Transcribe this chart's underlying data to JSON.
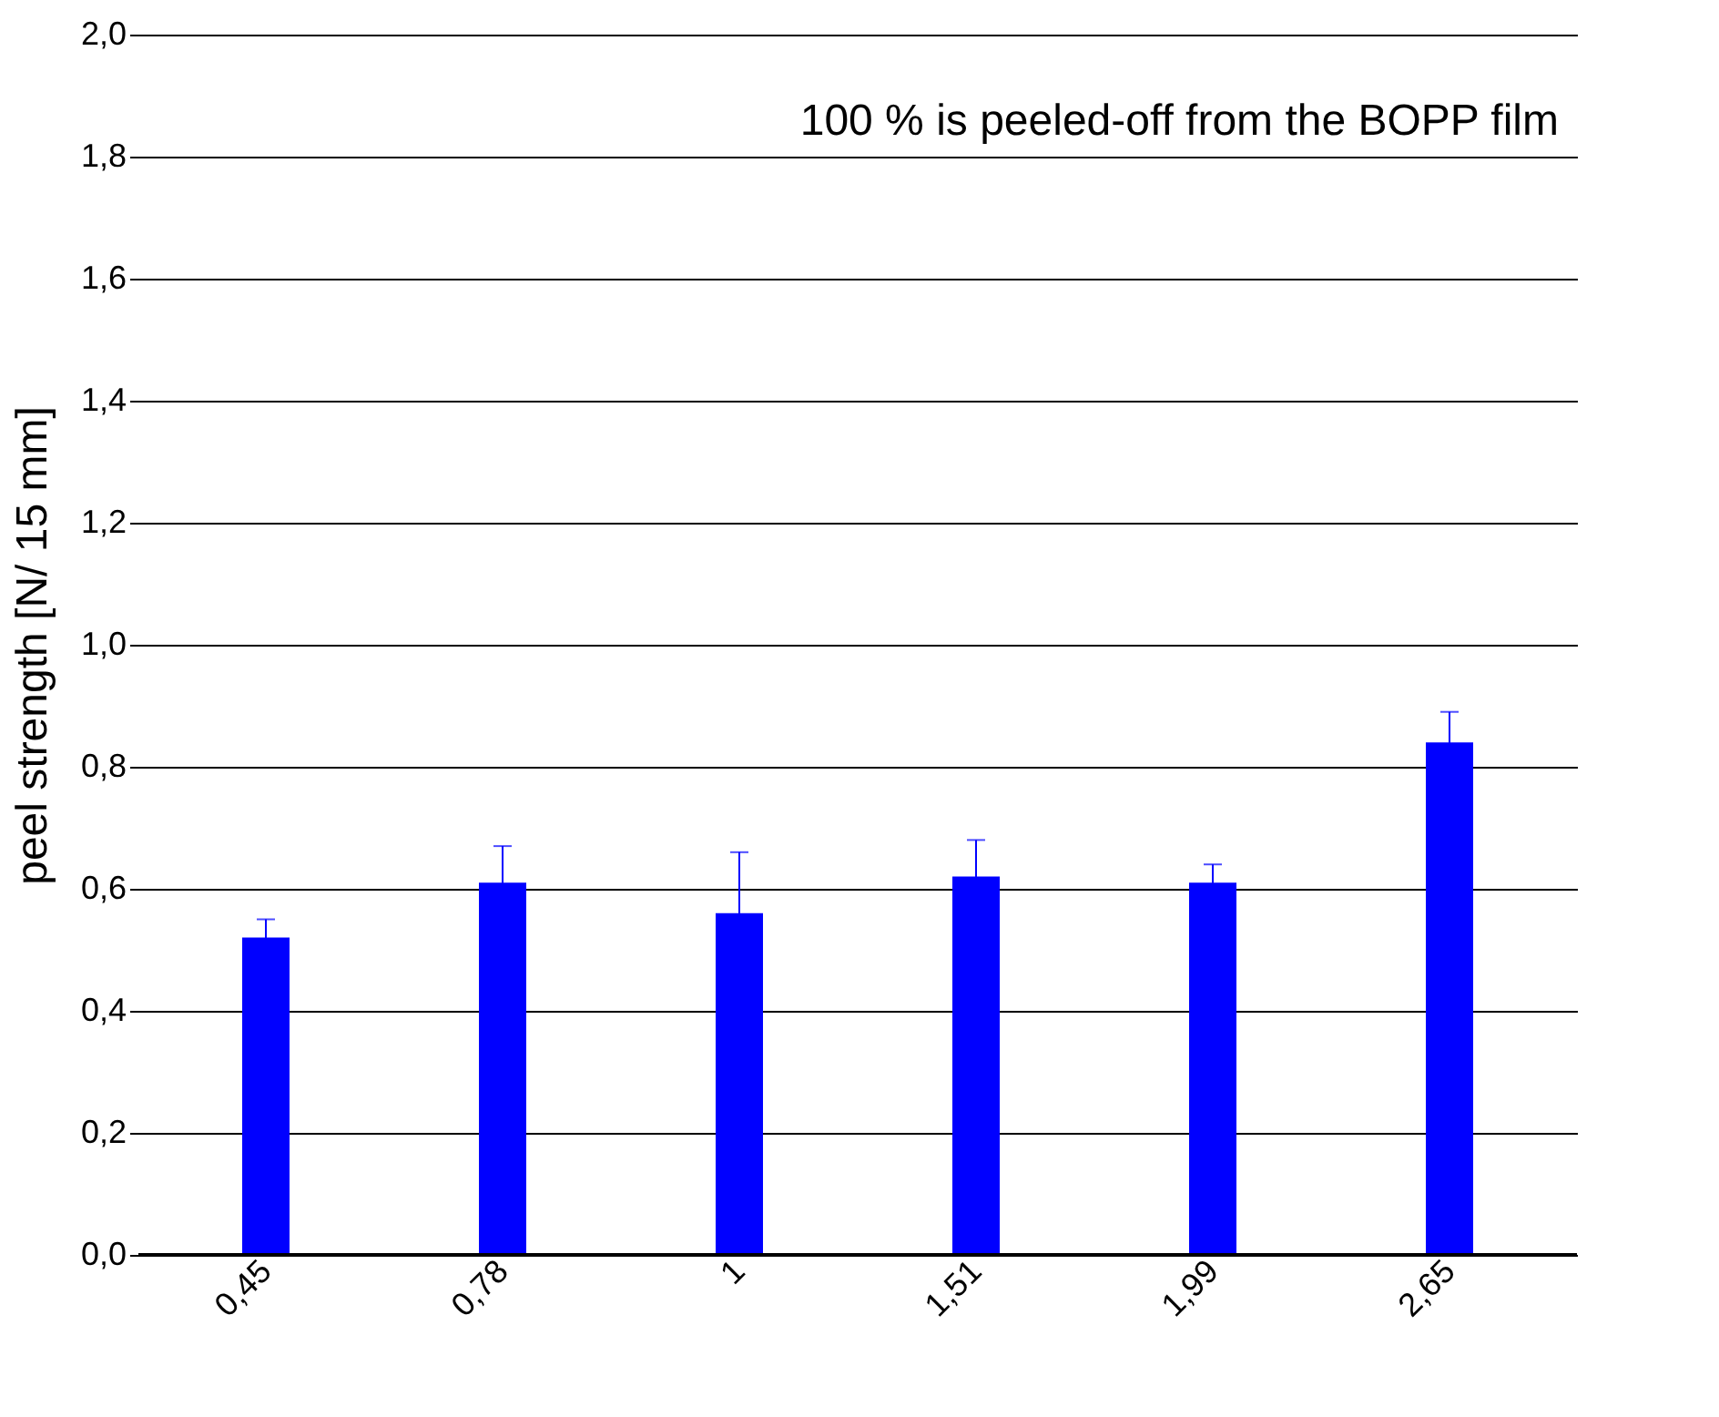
{
  "chart_data": {
    "type": "bar",
    "ylabel": "peel strength [N/ 15 mm]",
    "annotations": [
      "100 % is peeled-off from the BOPP film"
    ],
    "categories": [
      "0,45",
      "0,78",
      "1",
      "1,51",
      "1,99",
      "2,65"
    ],
    "values": [
      0.52,
      0.61,
      0.56,
      0.62,
      0.61,
      0.84
    ],
    "errors": [
      0.03,
      0.06,
      0.1,
      0.06,
      0.03,
      0.05
    ],
    "color": "#0000ff",
    "ylim": [
      0,
      2.0
    ],
    "yticks": [
      {
        "value": 0,
        "label": "0,0"
      },
      {
        "value": 0.2,
        "label": "0,2"
      },
      {
        "value": 0.4,
        "label": "0,4"
      },
      {
        "value": 0.6,
        "label": "0,6"
      },
      {
        "value": 0.8,
        "label": "0,8"
      },
      {
        "value": 1.0,
        "label": "1,0"
      },
      {
        "value": 1.2,
        "label": "1,2"
      },
      {
        "value": 1.4,
        "label": "1,4"
      },
      {
        "value": 1.6,
        "label": "1,6"
      },
      {
        "value": 1.8,
        "label": "1,8"
      },
      {
        "value": 2.0,
        "label": "2,0"
      }
    ],
    "grid": "y"
  }
}
